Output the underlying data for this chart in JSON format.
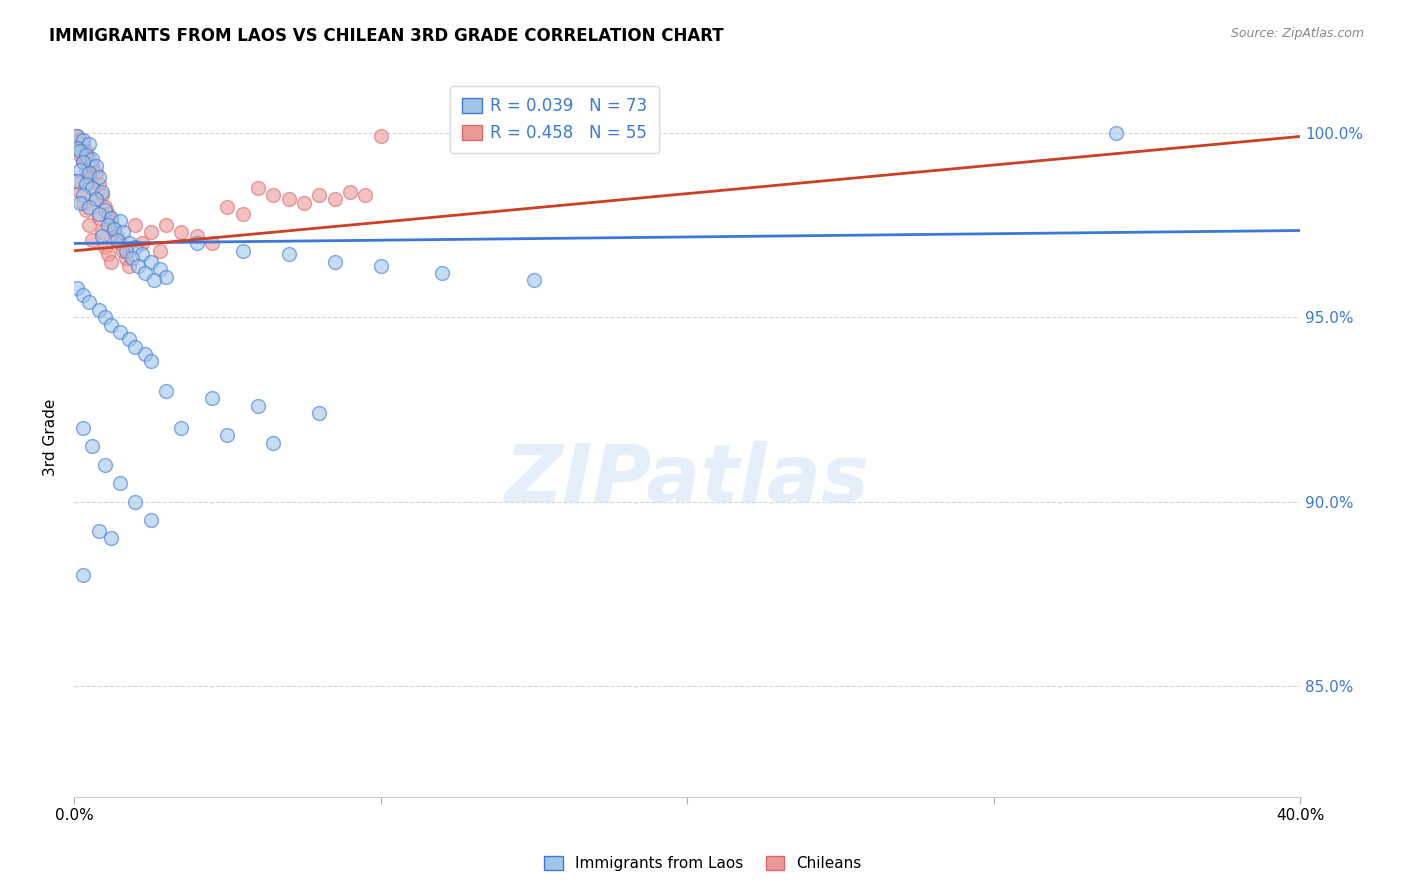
{
  "title": "IMMIGRANTS FROM LAOS VS CHILEAN 3RD GRADE CORRELATION CHART",
  "source": "Source: ZipAtlas.com",
  "ylabel": "3rd Grade",
  "xlim": [
    0.0,
    0.4
  ],
  "ylim": [
    0.82,
    1.015
  ],
  "yticks": [
    0.85,
    0.9,
    0.95,
    1.0
  ],
  "ytick_labels": [
    "85.0%",
    "90.0%",
    "95.0%",
    "100.0%"
  ],
  "xticks": [
    0.0,
    0.1,
    0.2,
    0.3,
    0.4
  ],
  "xtick_labels": [
    "0.0%",
    "",
    "",
    "",
    "40.0%"
  ],
  "blue_color": "#9fc5e8",
  "pink_color": "#ea9999",
  "blue_edge_color": "#3c78d8",
  "pink_edge_color": "#e06666",
  "blue_line_color": "#3c78d8",
  "pink_line_color": "#cc4125",
  "legend_blue_label": "R = 0.039   N = 73",
  "legend_pink_label": "R = 0.458   N = 55",
  "legend_label_blue": "Immigrants from Laos",
  "legend_label_pink": "Chileans",
  "watermark": "ZIPatlas",
  "blue_scatter": [
    [
      0.001,
      0.999
    ],
    [
      0.003,
      0.998
    ],
    [
      0.005,
      0.997
    ],
    [
      0.001,
      0.996
    ],
    [
      0.002,
      0.995
    ],
    [
      0.004,
      0.994
    ],
    [
      0.006,
      0.993
    ],
    [
      0.003,
      0.992
    ],
    [
      0.007,
      0.991
    ],
    [
      0.002,
      0.99
    ],
    [
      0.005,
      0.989
    ],
    [
      0.008,
      0.988
    ],
    [
      0.001,
      0.987
    ],
    [
      0.004,
      0.986
    ],
    [
      0.006,
      0.985
    ],
    [
      0.009,
      0.984
    ],
    [
      0.003,
      0.983
    ],
    [
      0.007,
      0.982
    ],
    [
      0.002,
      0.981
    ],
    [
      0.005,
      0.98
    ],
    [
      0.01,
      0.979
    ],
    [
      0.008,
      0.978
    ],
    [
      0.012,
      0.977
    ],
    [
      0.015,
      0.976
    ],
    [
      0.011,
      0.975
    ],
    [
      0.013,
      0.974
    ],
    [
      0.016,
      0.973
    ],
    [
      0.009,
      0.972
    ],
    [
      0.014,
      0.971
    ],
    [
      0.018,
      0.97
    ],
    [
      0.02,
      0.969
    ],
    [
      0.017,
      0.968
    ],
    [
      0.022,
      0.967
    ],
    [
      0.019,
      0.966
    ],
    [
      0.025,
      0.965
    ],
    [
      0.021,
      0.964
    ],
    [
      0.028,
      0.963
    ],
    [
      0.023,
      0.962
    ],
    [
      0.03,
      0.961
    ],
    [
      0.026,
      0.96
    ],
    [
      0.001,
      0.958
    ],
    [
      0.003,
      0.956
    ],
    [
      0.005,
      0.954
    ],
    [
      0.008,
      0.952
    ],
    [
      0.01,
      0.95
    ],
    [
      0.012,
      0.948
    ],
    [
      0.015,
      0.946
    ],
    [
      0.018,
      0.944
    ],
    [
      0.02,
      0.942
    ],
    [
      0.023,
      0.94
    ],
    [
      0.025,
      0.938
    ],
    [
      0.04,
      0.97
    ],
    [
      0.055,
      0.968
    ],
    [
      0.07,
      0.967
    ],
    [
      0.085,
      0.965
    ],
    [
      0.1,
      0.964
    ],
    [
      0.12,
      0.962
    ],
    [
      0.15,
      0.96
    ],
    [
      0.03,
      0.93
    ],
    [
      0.045,
      0.928
    ],
    [
      0.06,
      0.926
    ],
    [
      0.08,
      0.924
    ],
    [
      0.003,
      0.92
    ],
    [
      0.006,
      0.915
    ],
    [
      0.01,
      0.91
    ],
    [
      0.015,
      0.905
    ],
    [
      0.02,
      0.9
    ],
    [
      0.025,
      0.895
    ],
    [
      0.008,
      0.892
    ],
    [
      0.012,
      0.89
    ],
    [
      0.035,
      0.92
    ],
    [
      0.05,
      0.918
    ],
    [
      0.065,
      0.916
    ],
    [
      0.003,
      0.88
    ],
    [
      0.34,
      1.0
    ]
  ],
  "pink_scatter": [
    [
      0.001,
      0.999
    ],
    [
      0.002,
      0.998
    ],
    [
      0.003,
      0.997
    ],
    [
      0.001,
      0.996
    ],
    [
      0.004,
      0.995
    ],
    [
      0.002,
      0.994
    ],
    [
      0.005,
      0.993
    ],
    [
      0.003,
      0.992
    ],
    [
      0.006,
      0.991
    ],
    [
      0.004,
      0.99
    ],
    [
      0.007,
      0.989
    ],
    [
      0.005,
      0.988
    ],
    [
      0.001,
      0.987
    ],
    [
      0.008,
      0.986
    ],
    [
      0.006,
      0.985
    ],
    [
      0.002,
      0.984
    ],
    [
      0.009,
      0.983
    ],
    [
      0.007,
      0.982
    ],
    [
      0.003,
      0.981
    ],
    [
      0.01,
      0.98
    ],
    [
      0.004,
      0.979
    ],
    [
      0.011,
      0.978
    ],
    [
      0.008,
      0.977
    ],
    [
      0.012,
      0.976
    ],
    [
      0.005,
      0.975
    ],
    [
      0.013,
      0.974
    ],
    [
      0.009,
      0.973
    ],
    [
      0.014,
      0.972
    ],
    [
      0.006,
      0.971
    ],
    [
      0.015,
      0.97
    ],
    [
      0.01,
      0.969
    ],
    [
      0.016,
      0.968
    ],
    [
      0.011,
      0.967
    ],
    [
      0.017,
      0.966
    ],
    [
      0.012,
      0.965
    ],
    [
      0.018,
      0.964
    ],
    [
      0.02,
      0.975
    ],
    [
      0.025,
      0.973
    ],
    [
      0.022,
      0.97
    ],
    [
      0.028,
      0.968
    ],
    [
      0.03,
      0.975
    ],
    [
      0.035,
      0.973
    ],
    [
      0.04,
      0.972
    ],
    [
      0.045,
      0.97
    ],
    [
      0.05,
      0.98
    ],
    [
      0.055,
      0.978
    ],
    [
      0.06,
      0.985
    ],
    [
      0.065,
      0.983
    ],
    [
      0.07,
      0.982
    ],
    [
      0.075,
      0.981
    ],
    [
      0.08,
      0.983
    ],
    [
      0.085,
      0.982
    ],
    [
      0.09,
      0.984
    ],
    [
      0.095,
      0.983
    ],
    [
      0.1,
      0.999
    ]
  ],
  "blue_trend_x": [
    0.0,
    0.4
  ],
  "blue_trend_y": [
    0.97,
    0.9735
  ],
  "pink_trend_x": [
    0.0,
    0.4
  ],
  "pink_trend_y": [
    0.968,
    0.999
  ]
}
